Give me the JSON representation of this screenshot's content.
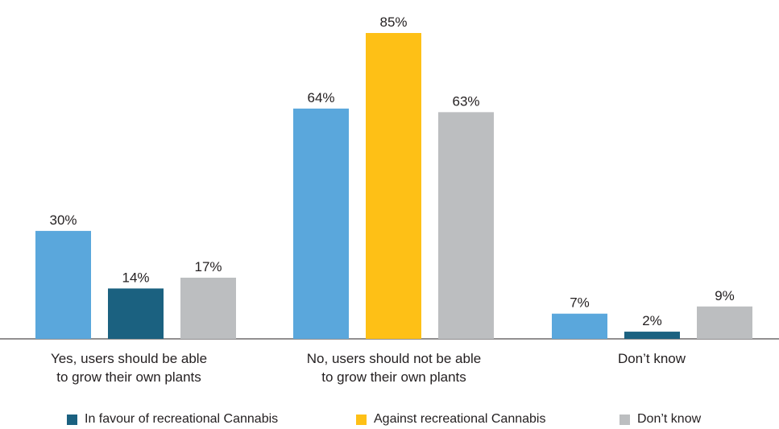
{
  "chart_data": {
    "type": "bar",
    "categories": [
      "Yes, users should be able\nto grow their own plants",
      "No, users should not be able\nto grow their own plants",
      "Don’t know"
    ],
    "bars": [
      [
        {
          "value": 30,
          "label": "30%",
          "color": "#5aa7dc"
        },
        {
          "value": 14,
          "label": "14%",
          "color": "#1b6180"
        },
        {
          "value": 17,
          "label": "17%",
          "color": "#bcbec0"
        }
      ],
      [
        {
          "value": 64,
          "label": "64%",
          "color": "#5aa7dc"
        },
        {
          "value": 85,
          "label": "85%",
          "color": "#fec016"
        },
        {
          "value": 63,
          "label": "63%",
          "color": "#bcbec0"
        }
      ],
      [
        {
          "value": 7,
          "label": "7%",
          "color": "#5aa7dc"
        },
        {
          "value": 2,
          "label": "2%",
          "color": "#1b6180"
        },
        {
          "value": 9,
          "label": "9%",
          "color": "#bcbec0"
        }
      ]
    ],
    "legend": [
      {
        "name": "In favour of recreational Cannabis",
        "color": "#1b6180"
      },
      {
        "name": "Against recreational Cannabis",
        "color": "#fec016"
      },
      {
        "name": "Don’t know",
        "color": "#bcbec0"
      }
    ],
    "ylim": [
      0,
      100
    ],
    "grid": false,
    "legend_position": "bottom"
  }
}
